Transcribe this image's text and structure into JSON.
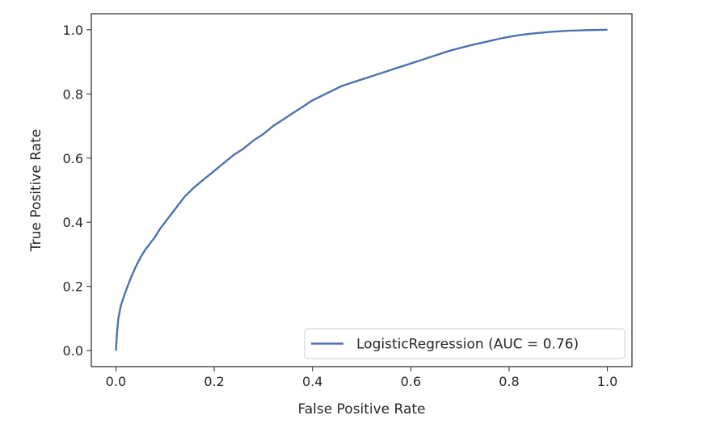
{
  "chart_data": {
    "type": "line",
    "title": "",
    "xlabel": "False Positive Rate",
    "ylabel": "True Positive Rate",
    "xlim": [
      -0.05,
      1.05
    ],
    "ylim": [
      -0.05,
      1.05
    ],
    "xticks": [
      0.0,
      0.2,
      0.4,
      0.6,
      0.8,
      1.0
    ],
    "yticks": [
      0.0,
      0.2,
      0.4,
      0.6,
      0.8,
      1.0
    ],
    "xtick_labels": [
      "0.0",
      "0.2",
      "0.4",
      "0.6",
      "0.8",
      "1.0"
    ],
    "ytick_labels": [
      "0.0",
      "0.2",
      "0.4",
      "0.6",
      "0.8",
      "1.0"
    ],
    "grid": false,
    "legend_position": "lower-right",
    "series": [
      {
        "name": "LogisticRegression (AUC = 0.76)",
        "color": "#4C72B0",
        "x": [
          0.0,
          0.002,
          0.005,
          0.01,
          0.02,
          0.03,
          0.04,
          0.05,
          0.06,
          0.07,
          0.08,
          0.09,
          0.1,
          0.12,
          0.14,
          0.16,
          0.18,
          0.2,
          0.22,
          0.24,
          0.26,
          0.28,
          0.3,
          0.32,
          0.34,
          0.36,
          0.38,
          0.4,
          0.42,
          0.44,
          0.46,
          0.48,
          0.5,
          0.52,
          0.54,
          0.56,
          0.58,
          0.6,
          0.62,
          0.64,
          0.66,
          0.68,
          0.7,
          0.72,
          0.74,
          0.76,
          0.78,
          0.8,
          0.82,
          0.84,
          0.86,
          0.88,
          0.9,
          0.92,
          0.94,
          0.96,
          0.98,
          1.0
        ],
        "y": [
          0.0,
          0.05,
          0.1,
          0.14,
          0.185,
          0.225,
          0.26,
          0.29,
          0.315,
          0.335,
          0.355,
          0.38,
          0.4,
          0.44,
          0.48,
          0.51,
          0.535,
          0.56,
          0.585,
          0.61,
          0.63,
          0.655,
          0.675,
          0.7,
          0.72,
          0.74,
          0.76,
          0.78,
          0.795,
          0.81,
          0.825,
          0.835,
          0.845,
          0.855,
          0.865,
          0.875,
          0.885,
          0.895,
          0.905,
          0.915,
          0.925,
          0.935,
          0.943,
          0.951,
          0.958,
          0.965,
          0.972,
          0.978,
          0.983,
          0.987,
          0.99,
          0.993,
          0.995,
          0.997,
          0.998,
          0.999,
          0.9995,
          1.0
        ]
      }
    ]
  }
}
